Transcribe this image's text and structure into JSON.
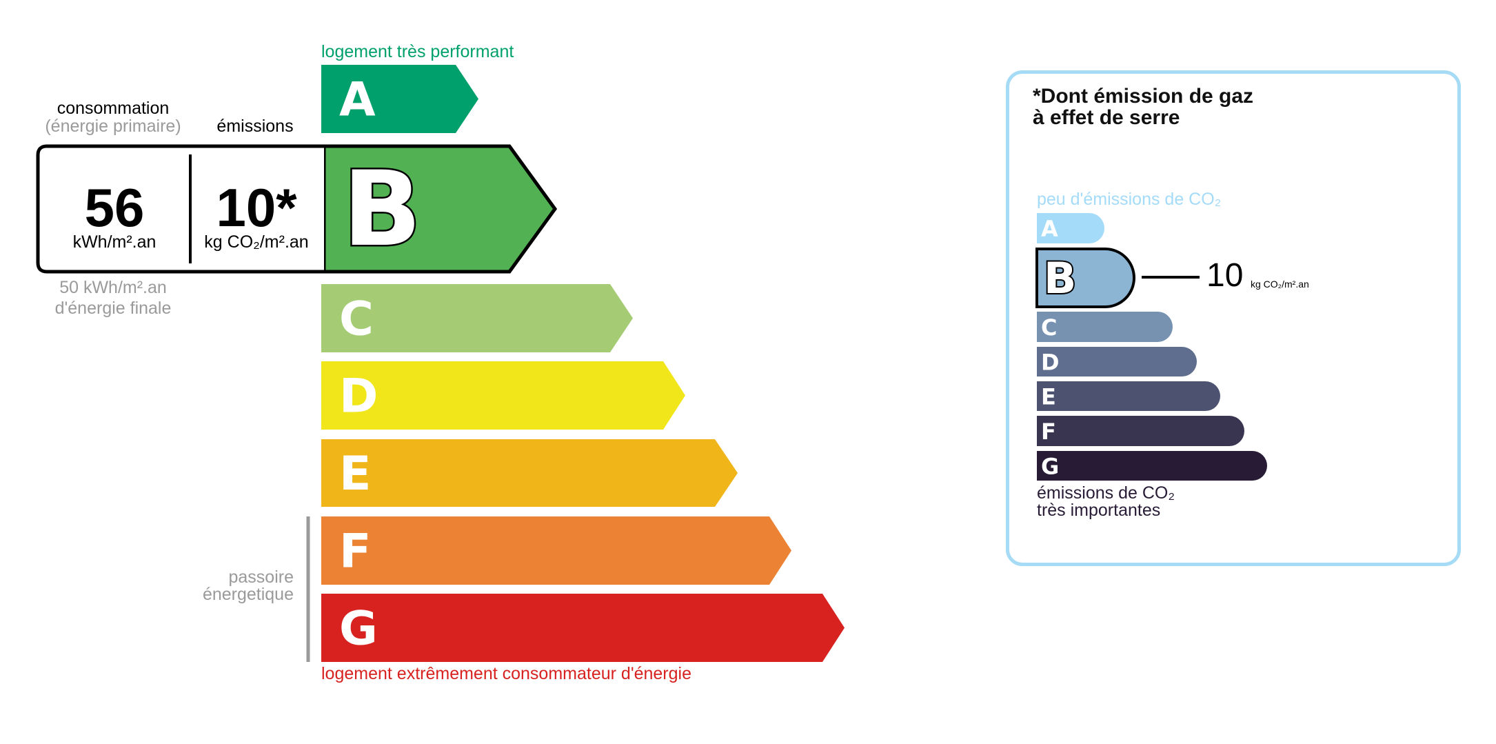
{
  "energy": {
    "top_label": "logement très performant",
    "bottom_label": "logement extrêmement consommateur d'énergie",
    "consumption_header": "consommation",
    "consumption_subheader": "(énergie primaire)",
    "emissions_header": "émissions",
    "consumption_value": "56",
    "consumption_unit": "kWh/m².an",
    "emissions_value": "10*",
    "emissions_unit": "kg CO₂/m².an",
    "final_energy_value": "50 kWh/m².an",
    "final_energy_label": "d'énergie finale",
    "passoire_line1": "passoire",
    "passoire_line2": "énergetique",
    "current_class": "B",
    "classes": [
      {
        "letter": "A",
        "color": "#00a06d"
      },
      {
        "letter": "B",
        "color": "#52b153"
      },
      {
        "letter": "C",
        "color": "#a5cc74"
      },
      {
        "letter": "D",
        "color": "#f0e61a"
      },
      {
        "letter": "E",
        "color": "#f0b519"
      },
      {
        "letter": "F",
        "color": "#eb8234"
      },
      {
        "letter": "G",
        "color": "#d7221f"
      }
    ]
  },
  "ges": {
    "title_line1": "*Dont émission de gaz",
    "title_line2": "à effet de serre",
    "top_label": "peu d'émissions de CO₂",
    "bottom_line1": "émissions de CO₂",
    "bottom_line2": "très importantes",
    "value": "10",
    "unit": "kg CO₂/m².an",
    "current_class": "B",
    "classes": [
      {
        "letter": "A",
        "color": "#a4dbf8"
      },
      {
        "letter": "B",
        "color": "#8cb4d3"
      },
      {
        "letter": "C",
        "color": "#7792b1"
      },
      {
        "letter": "D",
        "color": "#5f6e8e"
      },
      {
        "letter": "E",
        "color": "#4d5271"
      },
      {
        "letter": "F",
        "color": "#393551"
      },
      {
        "letter": "G",
        "color": "#281b35"
      }
    ]
  }
}
